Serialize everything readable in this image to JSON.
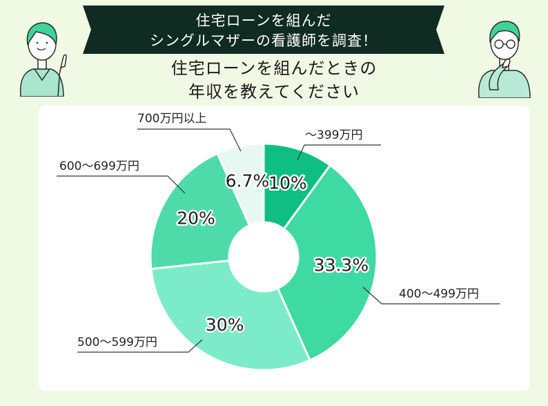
{
  "banner": {
    "line1": "住宅ローンを組んだ",
    "line2": "シングルマザーの看護師を調査！"
  },
  "question": {
    "line1": "住宅ローンを組んだときの",
    "line2": "年収を教えてください"
  },
  "colors": {
    "banner_bg": "#0f2b22",
    "background": "#f0f9e4",
    "panel": "#ffffff"
  },
  "chart_data": {
    "type": "pie",
    "donut": true,
    "start_angle_deg": 0,
    "direction": "clockwise",
    "categories": [
      "〜399万円",
      "400〜499万円",
      "500〜599万円",
      "600〜699万円",
      "700万円以上"
    ],
    "values": [
      10,
      33.3,
      30,
      20,
      6.7
    ],
    "value_labels": [
      "10%",
      "33.3%",
      "30%",
      "20%",
      "6.7%"
    ],
    "colors": [
      "#0fbe83",
      "#3fd9a2",
      "#7bebc8",
      "#4edba9",
      "#e6f8f1"
    ]
  }
}
